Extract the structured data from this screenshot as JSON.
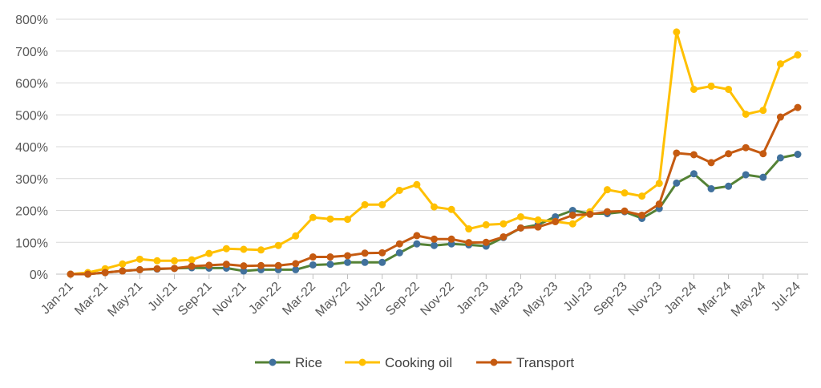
{
  "chart_data": {
    "type": "line",
    "title": "",
    "xlabel": "",
    "ylabel": "",
    "ylim": [
      0,
      800
    ],
    "y_ticks": [
      0,
      100,
      200,
      300,
      400,
      500,
      600,
      700,
      800
    ],
    "y_tick_labels": [
      "0%",
      "100%",
      "200%",
      "300%",
      "400%",
      "500%",
      "600%",
      "700%",
      "800%"
    ],
    "grid": true,
    "legend_position": "bottom",
    "x": [
      "Jan-21",
      "Feb-21",
      "Mar-21",
      "Apr-21",
      "May-21",
      "Jun-21",
      "Jul-21",
      "Aug-21",
      "Sep-21",
      "Oct-21",
      "Nov-21",
      "Dec-21",
      "Jan-22",
      "Feb-22",
      "Mar-22",
      "Apr-22",
      "May-22",
      "Jun-22",
      "Jul-22",
      "Aug-22",
      "Sep-22",
      "Oct-22",
      "Nov-22",
      "Dec-22",
      "Jan-23",
      "Feb-23",
      "Mar-23",
      "Apr-23",
      "May-23",
      "Jun-23",
      "Jul-23",
      "Aug-23",
      "Sep-23",
      "Oct-23",
      "Nov-23",
      "Dec-23",
      "Jan-24",
      "Feb-24",
      "Mar-24",
      "Apr-24",
      "May-24",
      "Jun-24",
      "Jul-24"
    ],
    "x_tick_labels": [
      "Jan-21",
      "Mar-21",
      "May-21",
      "Jul-21",
      "Sep-21",
      "Nov-21",
      "Jan-22",
      "Mar-22",
      "May-22",
      "Jul-22",
      "Sep-22",
      "Nov-22",
      "Jan-23",
      "Mar-23",
      "May-23",
      "Jul-23",
      "Sep-23",
      "Nov-23",
      "Jan-24",
      "Mar-24",
      "May-24",
      "Jul-24"
    ],
    "series": [
      {
        "name": "Rice",
        "color": "#548235",
        "marker_color": "#41719C",
        "values": [
          0,
          0,
          5,
          10,
          14,
          16,
          18,
          20,
          19,
          19,
          10,
          14,
          14,
          14,
          29,
          31,
          37,
          37,
          37,
          67,
          95,
          90,
          95,
          92,
          88,
          115,
          145,
          155,
          180,
          200,
          190,
          190,
          196,
          175,
          206,
          286,
          315,
          268,
          276,
          312,
          304,
          365,
          376
        ]
      },
      {
        "name": "Cooking oil",
        "color": "#FFC000",
        "marker_color": "#FFC000",
        "values": [
          0,
          5,
          17,
          32,
          47,
          42,
          42,
          45,
          65,
          80,
          78,
          76,
          90,
          120,
          178,
          173,
          172,
          218,
          218,
          263,
          281,
          211,
          203,
          142,
          155,
          158,
          180,
          170,
          165,
          158,
          196,
          265,
          255,
          245,
          285,
          760,
          580,
          590,
          580,
          502,
          514,
          660,
          688
        ]
      },
      {
        "name": "Transport",
        "color": "#C55A11",
        "marker_color": "#C55A11",
        "values": [
          0,
          0,
          5,
          10,
          14,
          17,
          18,
          25,
          28,
          31,
          26,
          27,
          27,
          33,
          54,
          54,
          58,
          66,
          67,
          95,
          121,
          110,
          110,
          99,
          100,
          117,
          145,
          148,
          165,
          185,
          188,
          196,
          198,
          185,
          220,
          380,
          375,
          350,
          378,
          397,
          378,
          493,
          523
        ]
      }
    ]
  }
}
